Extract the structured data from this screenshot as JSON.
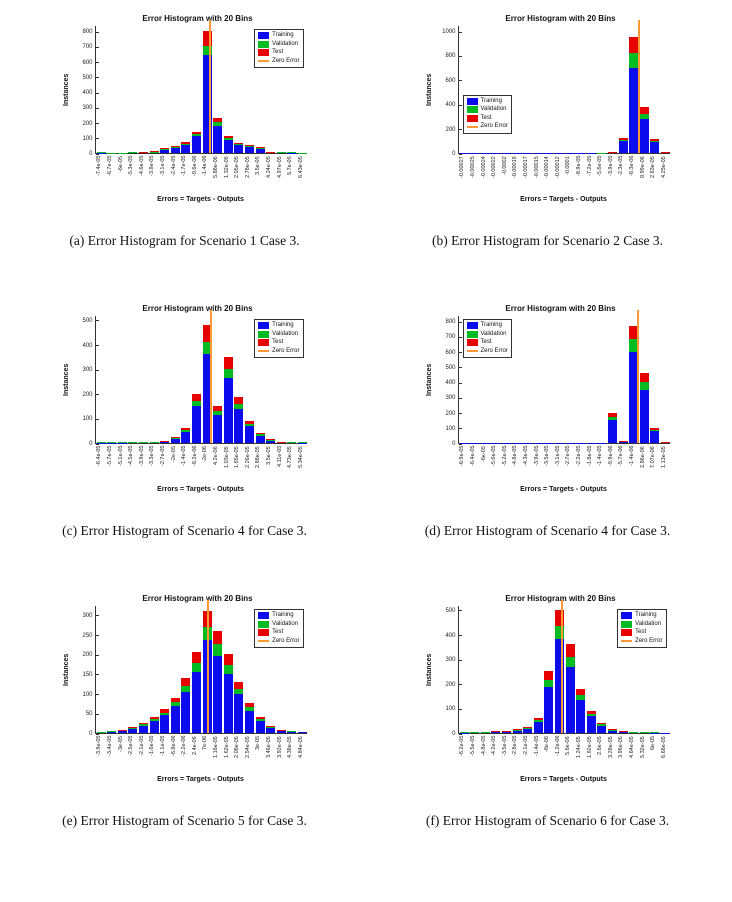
{
  "page": {
    "background": "#ffffff"
  },
  "chart_data": [
    {
      "type": "bar",
      "stacked": true,
      "title": "Error Histogram with 20 Bins",
      "xlabel": "Errors = Targets - Outputs",
      "ylabel": "Instances",
      "caption": "(a) Error Histogram for Scenario 1 Case 3.",
      "categories": [
        "-7.4e-05",
        "-6.7e-05",
        "-6e-05",
        "-5.3e-05",
        "-4.6e-05",
        "-3.8e-05",
        "-3.1e-05",
        "-2.4e-05",
        "-1.7e-05",
        "-9.6e-06",
        "-1.4e-06",
        "5.88e-06",
        "1.32e-05",
        "2.05e-05",
        "2.78e-05",
        "3.5e-05",
        "4.24e-05",
        "4.97e-05",
        "5.7e-05",
        "6.43e-05"
      ],
      "series": [
        {
          "name": "Training",
          "color": "#0b0bee",
          "values": [
            3,
            2,
            2,
            4,
            6,
            9,
            23,
            35,
            55,
            110,
            640,
            180,
            85,
            50,
            43,
            31,
            8,
            5,
            3,
            2
          ]
        },
        {
          "name": "Validation",
          "color": "#00bb22",
          "values": [
            1,
            1,
            1,
            1,
            1,
            1,
            3,
            5,
            7,
            15,
            60,
            25,
            12,
            7,
            6,
            4,
            1,
            1,
            1,
            1
          ]
        },
        {
          "name": "Test",
          "color": "#e60000",
          "values": [
            0,
            0,
            0,
            0,
            1,
            2,
            4,
            5,
            8,
            15,
            100,
            25,
            13,
            8,
            6,
            5,
            1,
            0,
            0,
            0
          ]
        }
      ],
      "zero_error": {
        "label": "Zero Error",
        "color": "#ff9933",
        "bin": 10.2
      },
      "ylim": [
        0,
        840
      ],
      "yticks": [
        0,
        100,
        200,
        300,
        400,
        500,
        600,
        700,
        800
      ],
      "legend_position": "top-right"
    },
    {
      "type": "bar",
      "stacked": true,
      "title": "Error Histogram with 20 Bins",
      "xlabel": "Errors = Targets - Outputs",
      "ylabel": "Instances",
      "caption": "(b) Error Histogram for Scenario 2 Case 3.",
      "categories": [
        "-0.00027",
        "-0.00025",
        "-0.00024",
        "-0.00022",
        "-0.0002",
        "-0.00019",
        "-0.00017",
        "-0.00015",
        "-0.00014",
        "-0.00012",
        "-0.0001",
        "-8.9e-05",
        "-7.2e-05",
        "-5.6e-05",
        "-3.9e-05",
        "-2.3e-05",
        "-6.3e-06",
        "9.99e-06",
        "2.63e-05",
        "4.25e-05"
      ],
      "series": [
        {
          "name": "Training",
          "color": "#0b0bee",
          "values": [
            2,
            2,
            1,
            1,
            1,
            2,
            1,
            1,
            2,
            2,
            2,
            2,
            3,
            3,
            6,
            95,
            700,
            280,
            90,
            6
          ]
        },
        {
          "name": "Validation",
          "color": "#00bb22",
          "values": [
            0,
            0,
            0,
            0,
            0,
            0,
            0,
            0,
            0,
            0,
            0,
            0,
            0,
            1,
            1,
            10,
            120,
            40,
            10,
            1
          ]
        },
        {
          "name": "Test",
          "color": "#e60000",
          "values": [
            0,
            0,
            0,
            0,
            0,
            0,
            0,
            0,
            0,
            0,
            0,
            0,
            0,
            0,
            1,
            15,
            130,
            60,
            15,
            1
          ]
        }
      ],
      "zero_error": {
        "label": "Zero Error",
        "color": "#ff9933",
        "bin": 16.4
      },
      "ylim": [
        0,
        1050
      ],
      "yticks": [
        0,
        200,
        400,
        600,
        800,
        1000
      ],
      "legend_position": "mid-left"
    },
    {
      "type": "bar",
      "stacked": true,
      "title": "Error Histogram with 20 Bins",
      "xlabel": "Errors = Targets - Outputs",
      "ylabel": "Instances",
      "caption": "(c) Error Histogram of Scenario 4 for Case 3.",
      "categories": [
        "-6.4e-05",
        "-5.7e-05",
        "-5.1e-05",
        "-4.5e-05",
        "-3.9e-05",
        "-3.3e-05",
        "-2.7e-05",
        "-2e-05",
        "-1.4e-05",
        "-8.2e-06",
        "-2e-06",
        "4.2e-06",
        "1.03e-05",
        "1.65e-05",
        "2.26e-05",
        "2.88e-05",
        "3.5e-05",
        "4.11e-05",
        "4.73e-05",
        "5.34e-05"
      ],
      "series": [
        {
          "name": "Training",
          "color": "#0b0bee",
          "values": [
            2,
            2,
            2,
            3,
            4,
            5,
            8,
            19,
            45,
            150,
            360,
            115,
            265,
            140,
            68,
            30,
            11,
            4,
            3,
            2
          ]
        },
        {
          "name": "Validation",
          "color": "#00bb22",
          "values": [
            1,
            1,
            1,
            1,
            1,
            1,
            1,
            3,
            7,
            20,
            50,
            15,
            35,
            20,
            10,
            5,
            2,
            1,
            1,
            1
          ]
        },
        {
          "name": "Test",
          "color": "#e60000",
          "values": [
            0,
            0,
            0,
            0,
            0,
            0,
            1,
            3,
            8,
            30,
            70,
            20,
            50,
            25,
            12,
            5,
            2,
            1,
            0,
            0
          ]
        }
      ],
      "zero_error": {
        "label": "Zero Error",
        "color": "#ff9933",
        "bin": 10.3
      },
      "ylim": [
        0,
        520
      ],
      "yticks": [
        0,
        100,
        200,
        300,
        400,
        500
      ],
      "legend_position": "top-right"
    },
    {
      "type": "bar",
      "stacked": true,
      "title": "Error Histogram with 20 Bins",
      "xlabel": "Errors = Targets - Outputs",
      "ylabel": "Instances",
      "caption": "(d) Error Histogram of Scenario 4 for Case 3.",
      "categories": [
        "-6.9e-05",
        "-6.4e-05",
        "-6e-05",
        "-5.6e-05",
        "-5.2e-05",
        "-4.8e-05",
        "-4.3e-05",
        "-3.9e-05",
        "-3.5e-05",
        "-3.1e-05",
        "-2.7e-05",
        "-2.2e-05",
        "-1.8e-05",
        "-1.4e-05",
        "-9.9e-06",
        "-5.7e-06",
        "-1.4e-06",
        "2.86e-06",
        "7.07e-06",
        "1.13e-05"
      ],
      "series": [
        {
          "name": "Training",
          "color": "#0b0bee",
          "values": [
            1,
            1,
            1,
            1,
            1,
            1,
            1,
            1,
            2,
            2,
            2,
            2,
            3,
            3,
            150,
            12,
            600,
            350,
            78,
            6
          ]
        },
        {
          "name": "Validation",
          "color": "#00bb22",
          "values": [
            0,
            0,
            0,
            0,
            0,
            0,
            0,
            0,
            0,
            0,
            0,
            0,
            0,
            0,
            20,
            1,
            80,
            50,
            10,
            1
          ]
        },
        {
          "name": "Test",
          "color": "#e60000",
          "values": [
            0,
            0,
            0,
            0,
            0,
            0,
            0,
            0,
            0,
            0,
            0,
            0,
            0,
            0,
            30,
            2,
            90,
            60,
            12,
            1
          ]
        }
      ],
      "zero_error": {
        "label": "Zero Error",
        "color": "#ff9933",
        "bin": 16.3
      },
      "ylim": [
        0,
        840
      ],
      "yticks": [
        0,
        100,
        200,
        300,
        400,
        500,
        600,
        700,
        800
      ],
      "legend_position": "top-left"
    },
    {
      "type": "bar",
      "stacked": true,
      "title": "Error Histogram with 20 Bins",
      "xlabel": "Errors = Targets - Outputs",
      "ylabel": "Instances",
      "caption": "(e) Error Histogram of Scenario 5 for Case 3.",
      "categories": [
        "-3.9e-05",
        "-3.4e-05",
        "-3e-05",
        "-2.5e-05",
        "-2.1e-05",
        "-1.6e-05",
        "-1.1e-05",
        "-6.8e-06",
        "-2.2e-06",
        "2.4e-06",
        "7e-06",
        "1.16e-05",
        "1.62e-05",
        "2.08e-05",
        "2.54e-05",
        "3e-05",
        "3.46e-05",
        "3.92e-05",
        "4.38e-05",
        "4.84e-05"
      ],
      "series": [
        {
          "name": "Training",
          "color": "#0b0bee",
          "values": [
            2,
            4,
            6,
            12,
            19,
            30,
            45,
            68,
            105,
            155,
            235,
            195,
            150,
            98,
            56,
            30,
            14,
            6,
            3,
            2
          ]
        },
        {
          "name": "Validation",
          "color": "#00bb22",
          "values": [
            1,
            1,
            1,
            2,
            3,
            5,
            7,
            10,
            15,
            22,
            35,
            30,
            23,
            15,
            9,
            5,
            2,
            1,
            1,
            0
          ]
        },
        {
          "name": "Test",
          "color": "#e60000",
          "values": [
            0,
            0,
            1,
            1,
            3,
            5,
            8,
            12,
            20,
            28,
            40,
            35,
            27,
            17,
            10,
            5,
            2,
            1,
            0,
            0
          ]
        }
      ],
      "zero_error": {
        "label": "Zero Error",
        "color": "#ff9933",
        "bin": 10.0
      },
      "ylim": [
        0,
        325
      ],
      "yticks": [
        0,
        50,
        100,
        150,
        200,
        250,
        300
      ],
      "legend_position": "top-right"
    },
    {
      "type": "bar",
      "stacked": true,
      "title": "Error Histogram with 20 Bins",
      "xlabel": "Errors = Targets - Outputs",
      "ylabel": "Instances",
      "caption": "(f) Error Histogram of Scenario 6 for Case 3.",
      "categories": [
        "-6.2e-05",
        "-5.5e-05",
        "-4.8e-05",
        "-4.2e-05",
        "-3.5e-05",
        "-2.8e-05",
        "-2.1e-05",
        "-1.4e-05",
        "-8e-06",
        "-1.2e-06",
        "5.6e-06",
        "1.24e-05",
        "1.92e-05",
        "2.6e-05",
        "3.28e-05",
        "3.96e-05",
        "4.64e-05",
        "5.32e-05",
        "6e-05",
        "6.68e-05"
      ],
      "series": [
        {
          "name": "Training",
          "color": "#0b0bee",
          "values": [
            2,
            3,
            4,
            6,
            8,
            11,
            19,
            45,
            185,
            380,
            270,
            135,
            68,
            30,
            11,
            6,
            4,
            3,
            2,
            2
          ]
        },
        {
          "name": "Validation",
          "color": "#00bb22",
          "values": [
            1,
            1,
            1,
            1,
            1,
            2,
            3,
            7,
            30,
            55,
            40,
            20,
            10,
            5,
            2,
            1,
            1,
            1,
            1,
            0
          ]
        },
        {
          "name": "Test",
          "color": "#e60000",
          "values": [
            0,
            0,
            0,
            1,
            1,
            2,
            3,
            8,
            35,
            65,
            50,
            25,
            12,
            5,
            2,
            1,
            0,
            0,
            0,
            0
          ]
        }
      ],
      "zero_error": {
        "label": "Zero Error",
        "color": "#ff9933",
        "bin": 9.2
      },
      "ylim": [
        0,
        520
      ],
      "yticks": [
        0,
        100,
        200,
        300,
        400,
        500
      ],
      "legend_position": "top-right"
    }
  ]
}
